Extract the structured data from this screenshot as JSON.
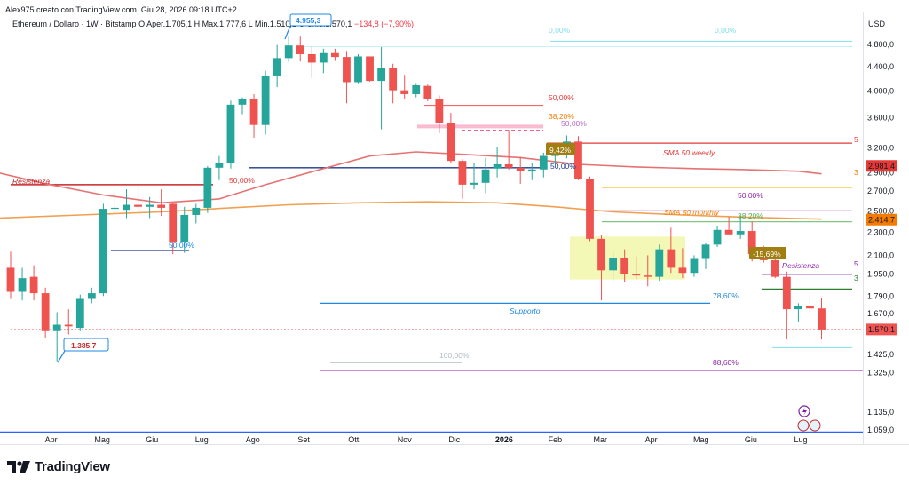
{
  "header": {
    "author_line": "Alex975 creato con TradingView.com, Giu 28, 2026 09:18 UTC+2"
  },
  "symbol": {
    "name": "Ethereum / Dollaro · 1W · Bitstamp",
    "open": "O  Aper.1.705,1",
    "high": "H  Max.1.777,6",
    "low": "L  Min.1.510,1",
    "close": "C  Chiu.1.570,1",
    "change": "−134,8 (−7,90%)"
  },
  "currency": "USD",
  "brand": "TradingView",
  "colors": {
    "up": "#26a69a",
    "down": "#ef5350",
    "sma_weekly": "#e57373",
    "sma_monthly": "#f0a050",
    "support": "#2196f3",
    "resistance": "#e53935",
    "fib_purple": "#9c27b0",
    "fib_green": "#4caf50"
  },
  "chart_data": {
    "type": "candlestick",
    "title": "Ethereum / Dollaro · 1W · Bitstamp",
    "y_scale": "log",
    "ylim": [
      1040,
      5000
    ],
    "y_ticks": [
      {
        "value": 4800,
        "label": "4.800,0"
      },
      {
        "value": 4400,
        "label": "4.400,0"
      },
      {
        "value": 4000,
        "label": "4.000,0"
      },
      {
        "value": 3600,
        "label": "3.600,0"
      },
      {
        "value": 3200,
        "label": "3.200,0"
      },
      {
        "value": 2900,
        "label": "2.900,0"
      },
      {
        "value": 2700,
        "label": "2.700,0"
      },
      {
        "value": 2500,
        "label": "2.500,0"
      },
      {
        "value": 2300,
        "label": "2.300,0"
      },
      {
        "value": 2100,
        "label": "2.100,0"
      },
      {
        "value": 1950,
        "label": "1.950,0"
      },
      {
        "value": 1790,
        "label": "1.790,0"
      },
      {
        "value": 1670,
        "label": "1.670,0"
      },
      {
        "value": 1425,
        "label": "1.425,0"
      },
      {
        "value": 1325,
        "label": "1.325,0"
      },
      {
        "value": 1135,
        "label": "1.135,0"
      },
      {
        "value": 1059,
        "label": "1.059,0"
      }
    ],
    "x_labels": [
      {
        "label": "Apr",
        "week": 3.5,
        "bold": false
      },
      {
        "label": "Mag",
        "week": 7.9,
        "bold": false
      },
      {
        "label": "Giu",
        "week": 12.2,
        "bold": false
      },
      {
        "label": "Lug",
        "week": 16.5,
        "bold": false
      },
      {
        "label": "Ago",
        "week": 20.9,
        "bold": false
      },
      {
        "label": "Set",
        "week": 25.3,
        "bold": false
      },
      {
        "label": "Ott",
        "week": 29.6,
        "bold": false
      },
      {
        "label": "Nov",
        "week": 34.0,
        "bold": false
      },
      {
        "label": "Dic",
        "week": 38.3,
        "bold": false
      },
      {
        "label": "2026",
        "week": 42.6,
        "bold": true
      },
      {
        "label": "Feb",
        "week": 47.0,
        "bold": false
      },
      {
        "label": "Mar",
        "week": 50.9,
        "bold": false
      },
      {
        "label": "Apr",
        "week": 55.3,
        "bold": false
      },
      {
        "label": "Mag",
        "week": 59.6,
        "bold": false
      },
      {
        "label": "Giu",
        "week": 63.9,
        "bold": false
      },
      {
        "label": "Lug",
        "week": 68.2,
        "bold": false
      }
    ],
    "candles": [
      {
        "o": 2000,
        "h": 2130,
        "l": 1770,
        "c": 1820
      },
      {
        "o": 1820,
        "h": 2000,
        "l": 1760,
        "c": 1920
      },
      {
        "o": 1930,
        "h": 2020,
        "l": 1760,
        "c": 1810
      },
      {
        "o": 1810,
        "h": 1850,
        "l": 1520,
        "c": 1560
      },
      {
        "o": 1560,
        "h": 1680,
        "l": 1385.7,
        "c": 1600
      },
      {
        "o": 1600,
        "h": 1700,
        "l": 1540,
        "c": 1590
      },
      {
        "o": 1580,
        "h": 1800,
        "l": 1560,
        "c": 1770
      },
      {
        "o": 1770,
        "h": 1850,
        "l": 1740,
        "c": 1810
      },
      {
        "o": 1810,
        "h": 2570,
        "l": 1790,
        "c": 2520
      },
      {
        "o": 2520,
        "h": 2700,
        "l": 2480,
        "c": 2530
      },
      {
        "o": 2510,
        "h": 2720,
        "l": 2430,
        "c": 2560
      },
      {
        "o": 2560,
        "h": 2790,
        "l": 2500,
        "c": 2540
      },
      {
        "o": 2540,
        "h": 2640,
        "l": 2430,
        "c": 2560
      },
      {
        "o": 2560,
        "h": 2720,
        "l": 2450,
        "c": 2530
      },
      {
        "o": 2570,
        "h": 2580,
        "l": 2110,
        "c": 2210
      },
      {
        "o": 2210,
        "h": 2540,
        "l": 2120,
        "c": 2460
      },
      {
        "o": 2460,
        "h": 2570,
        "l": 2380,
        "c": 2530
      },
      {
        "o": 2530,
        "h": 2980,
        "l": 2480,
        "c": 2960
      },
      {
        "o": 2960,
        "h": 3100,
        "l": 2820,
        "c": 3010
      },
      {
        "o": 3010,
        "h": 3850,
        "l": 2950,
        "c": 3790
      },
      {
        "o": 3790,
        "h": 3900,
        "l": 3650,
        "c": 3870
      },
      {
        "o": 3870,
        "h": 3950,
        "l": 3330,
        "c": 3500
      },
      {
        "o": 3500,
        "h": 4330,
        "l": 3370,
        "c": 4250
      },
      {
        "o": 4250,
        "h": 4790,
        "l": 4060,
        "c": 4550
      },
      {
        "o": 4550,
        "h": 4955.3,
        "l": 4480,
        "c": 4780
      },
      {
        "o": 4780,
        "h": 4950,
        "l": 4490,
        "c": 4620
      },
      {
        "o": 4620,
        "h": 4760,
        "l": 4210,
        "c": 4470
      },
      {
        "o": 4470,
        "h": 4720,
        "l": 4290,
        "c": 4640
      },
      {
        "o": 4640,
        "h": 4720,
        "l": 4500,
        "c": 4570
      },
      {
        "o": 4570,
        "h": 4680,
        "l": 3810,
        "c": 4140
      },
      {
        "o": 4140,
        "h": 4620,
        "l": 4110,
        "c": 4580
      },
      {
        "o": 4580,
        "h": 4580,
        "l": 4150,
        "c": 4160
      },
      {
        "o": 4160,
        "h": 4750,
        "l": 3440,
        "c": 4380
      },
      {
        "o": 4380,
        "h": 4450,
        "l": 3810,
        "c": 4010
      },
      {
        "o": 4010,
        "h": 4260,
        "l": 3880,
        "c": 3950
      },
      {
        "o": 3950,
        "h": 4110,
        "l": 3900,
        "c": 4090
      },
      {
        "o": 4080,
        "h": 4100,
        "l": 3840,
        "c": 3880
      },
      {
        "o": 3880,
        "h": 3930,
        "l": 3390,
        "c": 3530
      },
      {
        "o": 3530,
        "h": 3670,
        "l": 3010,
        "c": 3040
      },
      {
        "o": 3040,
        "h": 3060,
        "l": 2620,
        "c": 2770
      },
      {
        "o": 2770,
        "h": 3010,
        "l": 2720,
        "c": 2790
      },
      {
        "o": 2790,
        "h": 3080,
        "l": 2680,
        "c": 2940
      },
      {
        "o": 2950,
        "h": 3210,
        "l": 2850,
        "c": 3000
      },
      {
        "o": 3000,
        "h": 3430,
        "l": 2940,
        "c": 2960
      },
      {
        "o": 2960,
        "h": 3090,
        "l": 2780,
        "c": 2920
      },
      {
        "o": 2920,
        "h": 3020,
        "l": 2820,
        "c": 2940
      },
      {
        "o": 2940,
        "h": 3140,
        "l": 2850,
        "c": 3100
      },
      {
        "o": 3100,
        "h": 3200,
        "l": 3000,
        "c": 3120
      },
      {
        "o": 3120,
        "h": 3360,
        "l": 3070,
        "c": 3280
      },
      {
        "o": 3280,
        "h": 3350,
        "l": 2820,
        "c": 2830
      },
      {
        "o": 2830,
        "h": 2860,
        "l": 2220,
        "c": 2240
      },
      {
        "o": 2240,
        "h": 2270,
        "l": 1760,
        "c": 1980
      },
      {
        "o": 1980,
        "h": 2130,
        "l": 1900,
        "c": 2080
      },
      {
        "o": 2080,
        "h": 2150,
        "l": 1890,
        "c": 1950
      },
      {
        "o": 1950,
        "h": 2090,
        "l": 1910,
        "c": 1940
      },
      {
        "o": 1940,
        "h": 2100,
        "l": 1860,
        "c": 1930
      },
      {
        "o": 1930,
        "h": 2190,
        "l": 1900,
        "c": 2150
      },
      {
        "o": 2150,
        "h": 2340,
        "l": 1960,
        "c": 2000
      },
      {
        "o": 2000,
        "h": 2160,
        "l": 1920,
        "c": 1960
      },
      {
        "o": 1960,
        "h": 2100,
        "l": 1930,
        "c": 2070
      },
      {
        "o": 2070,
        "h": 2200,
        "l": 1990,
        "c": 2190
      },
      {
        "o": 2190,
        "h": 2360,
        "l": 2170,
        "c": 2320
      },
      {
        "o": 2320,
        "h": 2440,
        "l": 2280,
        "c": 2280
      },
      {
        "o": 2280,
        "h": 2450,
        "l": 2240,
        "c": 2310
      },
      {
        "o": 2310,
        "h": 2400,
        "l": 2050,
        "c": 2110
      },
      {
        "o": 2110,
        "h": 2180,
        "l": 2040,
        "c": 2060
      },
      {
        "o": 2060,
        "h": 2150,
        "l": 1920,
        "c": 1930
      },
      {
        "o": 1930,
        "h": 1970,
        "l": 1510,
        "c": 1700
      },
      {
        "o": 1700,
        "h": 1740,
        "l": 1620,
        "c": 1720
      },
      {
        "o": 1720,
        "h": 1800,
        "l": 1680,
        "c": 1705
      },
      {
        "o": 1705.1,
        "h": 1777.6,
        "l": 1510.1,
        "c": 1570.1
      }
    ],
    "series": [
      {
        "name": "SMA 50 weekly",
        "points": [
          [
            -1,
            2900
          ],
          [
            3,
            2780
          ],
          [
            8,
            2660
          ],
          [
            13,
            2580
          ],
          [
            18,
            2620
          ],
          [
            22,
            2770
          ],
          [
            27,
            2950
          ],
          [
            31,
            3100
          ],
          [
            35,
            3150
          ],
          [
            39,
            3120
          ],
          [
            44,
            3080
          ],
          [
            49,
            3000
          ],
          [
            54,
            2970
          ],
          [
            59,
            2950
          ],
          [
            63,
            2940
          ],
          [
            68,
            2920
          ],
          [
            70,
            2890
          ]
        ]
      },
      {
        "name": "SMA 50 monthly",
        "points": [
          [
            -1,
            2430
          ],
          [
            6,
            2460
          ],
          [
            13,
            2490
          ],
          [
            19,
            2530
          ],
          [
            24,
            2560
          ],
          [
            30,
            2580
          ],
          [
            36,
            2590
          ],
          [
            42,
            2580
          ],
          [
            47,
            2540
          ],
          [
            52,
            2490
          ],
          [
            58,
            2460
          ],
          [
            63,
            2440
          ],
          [
            70,
            2420
          ]
        ]
      }
    ],
    "annotations": {
      "resistance_label": "Resistenza",
      "support_label": "Supporto",
      "sma_weekly_label": "SMA 50 weekly",
      "sma_monthly_label": "SMA 50 monthly",
      "resistance2_label": "Resistenza",
      "high_callout": "4.955,3",
      "low_callout": "1.385,7",
      "pct_up": "9,42%",
      "pct_down": "-15,69%",
      "fib_50_top": "50,00%",
      "fib_38_top": "38,20%",
      "fib_50_mid": "50,00%",
      "fib_50_blue": "50,00%",
      "fib_50_left": "50,00%",
      "fib_50_low": "50,00%",
      "fib_50_right": "50,00%",
      "fib_38_right": "38,20%",
      "fib_78": "78,60%",
      "fib_88": "88,60%",
      "fib_100": "100,00%",
      "fib_0_a": "0,00%",
      "fib_0_b": "0,00%",
      "axis_5": "5",
      "axis_3a": "3",
      "axis_5b": "5",
      "axis_3b": "3"
    },
    "price_tags": [
      {
        "value": 2981.4,
        "label": "2.981,4",
        "color": "#e53935"
      },
      {
        "value": 2414.7,
        "label": "2.414,7",
        "color": "#f57c00"
      },
      {
        "value": 1570.1,
        "label": "1.570,1",
        "color": "#ef5350"
      }
    ]
  }
}
